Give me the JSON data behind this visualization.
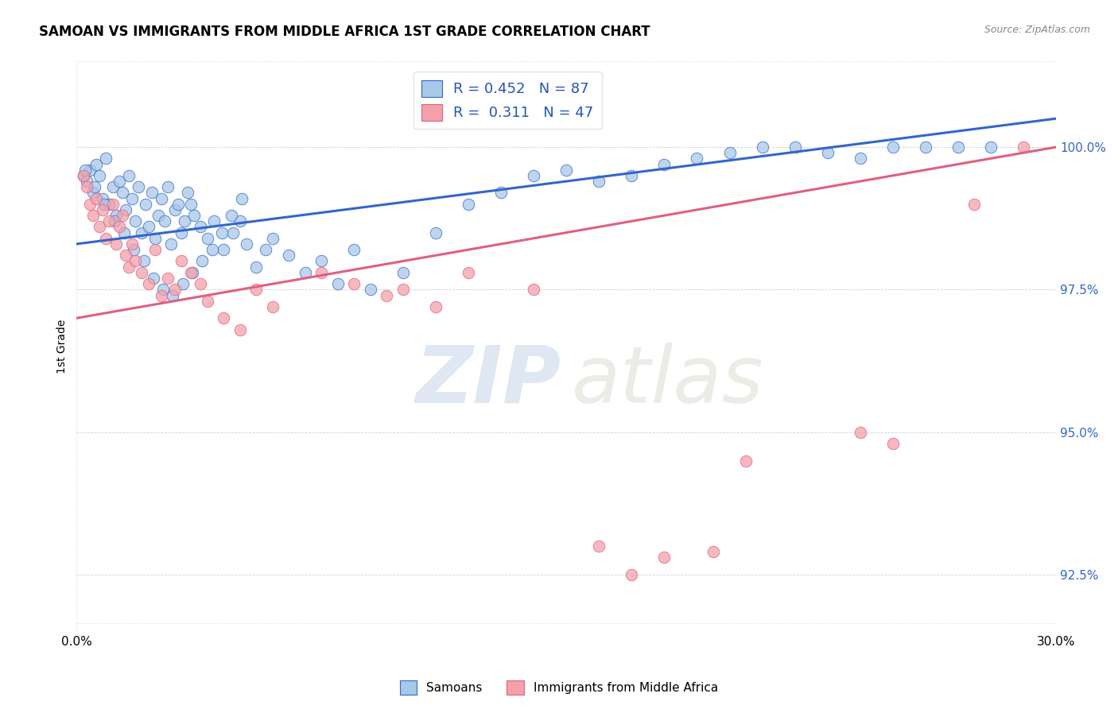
{
  "title": "SAMOAN VS IMMIGRANTS FROM MIDDLE AFRICA 1ST GRADE CORRELATION CHART",
  "source": "Source: ZipAtlas.com",
  "ylabel": "1st Grade",
  "ytick_values": [
    92.5,
    95.0,
    97.5,
    100.0
  ],
  "xlim": [
    0.0,
    30.0
  ],
  "ylim": [
    91.5,
    101.5
  ],
  "legend_blue_text": "R = 0.452   N = 87",
  "legend_pink_text": "R =  0.311   N = 47",
  "blue_color": "#A8C8E8",
  "pink_color": "#F4A0AA",
  "trendline_blue": "#3366CC",
  "trendline_pink": "#E06080",
  "blue_scatter_x": [
    0.2,
    0.3,
    0.4,
    0.5,
    0.6,
    0.7,
    0.8,
    0.9,
    1.0,
    1.1,
    1.2,
    1.3,
    1.4,
    1.5,
    1.6,
    1.7,
    1.8,
    1.9,
    2.0,
    2.1,
    2.2,
    2.3,
    2.4,
    2.5,
    2.6,
    2.7,
    2.8,
    2.9,
    3.0,
    3.1,
    3.2,
    3.3,
    3.4,
    3.5,
    3.6,
    3.8,
    4.0,
    4.2,
    4.5,
    4.8,
    5.0,
    5.2,
    5.5,
    5.8,
    6.0,
    6.5,
    7.0,
    7.5,
    8.0,
    8.5,
    9.0,
    10.0,
    11.0,
    12.0,
    13.0,
    14.0,
    15.0,
    16.0,
    17.0,
    18.0,
    19.0,
    20.0,
    21.0,
    22.0,
    23.0,
    24.0,
    25.0,
    26.0,
    27.0,
    28.0,
    0.25,
    0.55,
    0.85,
    1.15,
    1.45,
    1.75,
    2.05,
    2.35,
    2.65,
    2.95,
    3.25,
    3.55,
    3.85,
    4.15,
    4.45,
    4.75,
    5.05
  ],
  "blue_scatter_y": [
    99.5,
    99.4,
    99.6,
    99.2,
    99.7,
    99.5,
    99.1,
    99.8,
    99.0,
    99.3,
    98.8,
    99.4,
    99.2,
    98.9,
    99.5,
    99.1,
    98.7,
    99.3,
    98.5,
    99.0,
    98.6,
    99.2,
    98.4,
    98.8,
    99.1,
    98.7,
    99.3,
    98.3,
    98.9,
    99.0,
    98.5,
    98.7,
    99.2,
    99.0,
    98.8,
    98.6,
    98.4,
    98.7,
    98.2,
    98.5,
    98.7,
    98.3,
    97.9,
    98.2,
    98.4,
    98.1,
    97.8,
    98.0,
    97.6,
    98.2,
    97.5,
    97.8,
    98.5,
    99.0,
    99.2,
    99.5,
    99.6,
    99.4,
    99.5,
    99.7,
    99.8,
    99.9,
    100.0,
    100.0,
    99.9,
    99.8,
    100.0,
    100.0,
    100.0,
    100.0,
    99.6,
    99.3,
    99.0,
    98.7,
    98.5,
    98.2,
    98.0,
    97.7,
    97.5,
    97.4,
    97.6,
    97.8,
    98.0,
    98.2,
    98.5,
    98.8,
    99.1
  ],
  "pink_scatter_x": [
    0.2,
    0.3,
    0.4,
    0.5,
    0.6,
    0.7,
    0.8,
    0.9,
    1.0,
    1.1,
    1.2,
    1.3,
    1.4,
    1.5,
    1.6,
    1.7,
    1.8,
    2.0,
    2.2,
    2.4,
    2.6,
    2.8,
    3.0,
    3.2,
    3.5,
    3.8,
    4.0,
    4.5,
    5.0,
    5.5,
    6.0,
    7.5,
    8.5,
    9.5,
    10.0,
    11.0,
    12.0,
    14.0,
    16.0,
    17.0,
    18.0,
    19.5,
    20.5,
    24.0,
    25.0,
    27.5,
    29.0
  ],
  "pink_scatter_y": [
    99.5,
    99.3,
    99.0,
    98.8,
    99.1,
    98.6,
    98.9,
    98.4,
    98.7,
    99.0,
    98.3,
    98.6,
    98.8,
    98.1,
    97.9,
    98.3,
    98.0,
    97.8,
    97.6,
    98.2,
    97.4,
    97.7,
    97.5,
    98.0,
    97.8,
    97.6,
    97.3,
    97.0,
    96.8,
    97.5,
    97.2,
    97.8,
    97.6,
    97.4,
    97.5,
    97.2,
    97.8,
    97.5,
    93.0,
    92.5,
    92.8,
    92.9,
    94.5,
    95.0,
    94.8,
    99.0,
    100.0
  ]
}
